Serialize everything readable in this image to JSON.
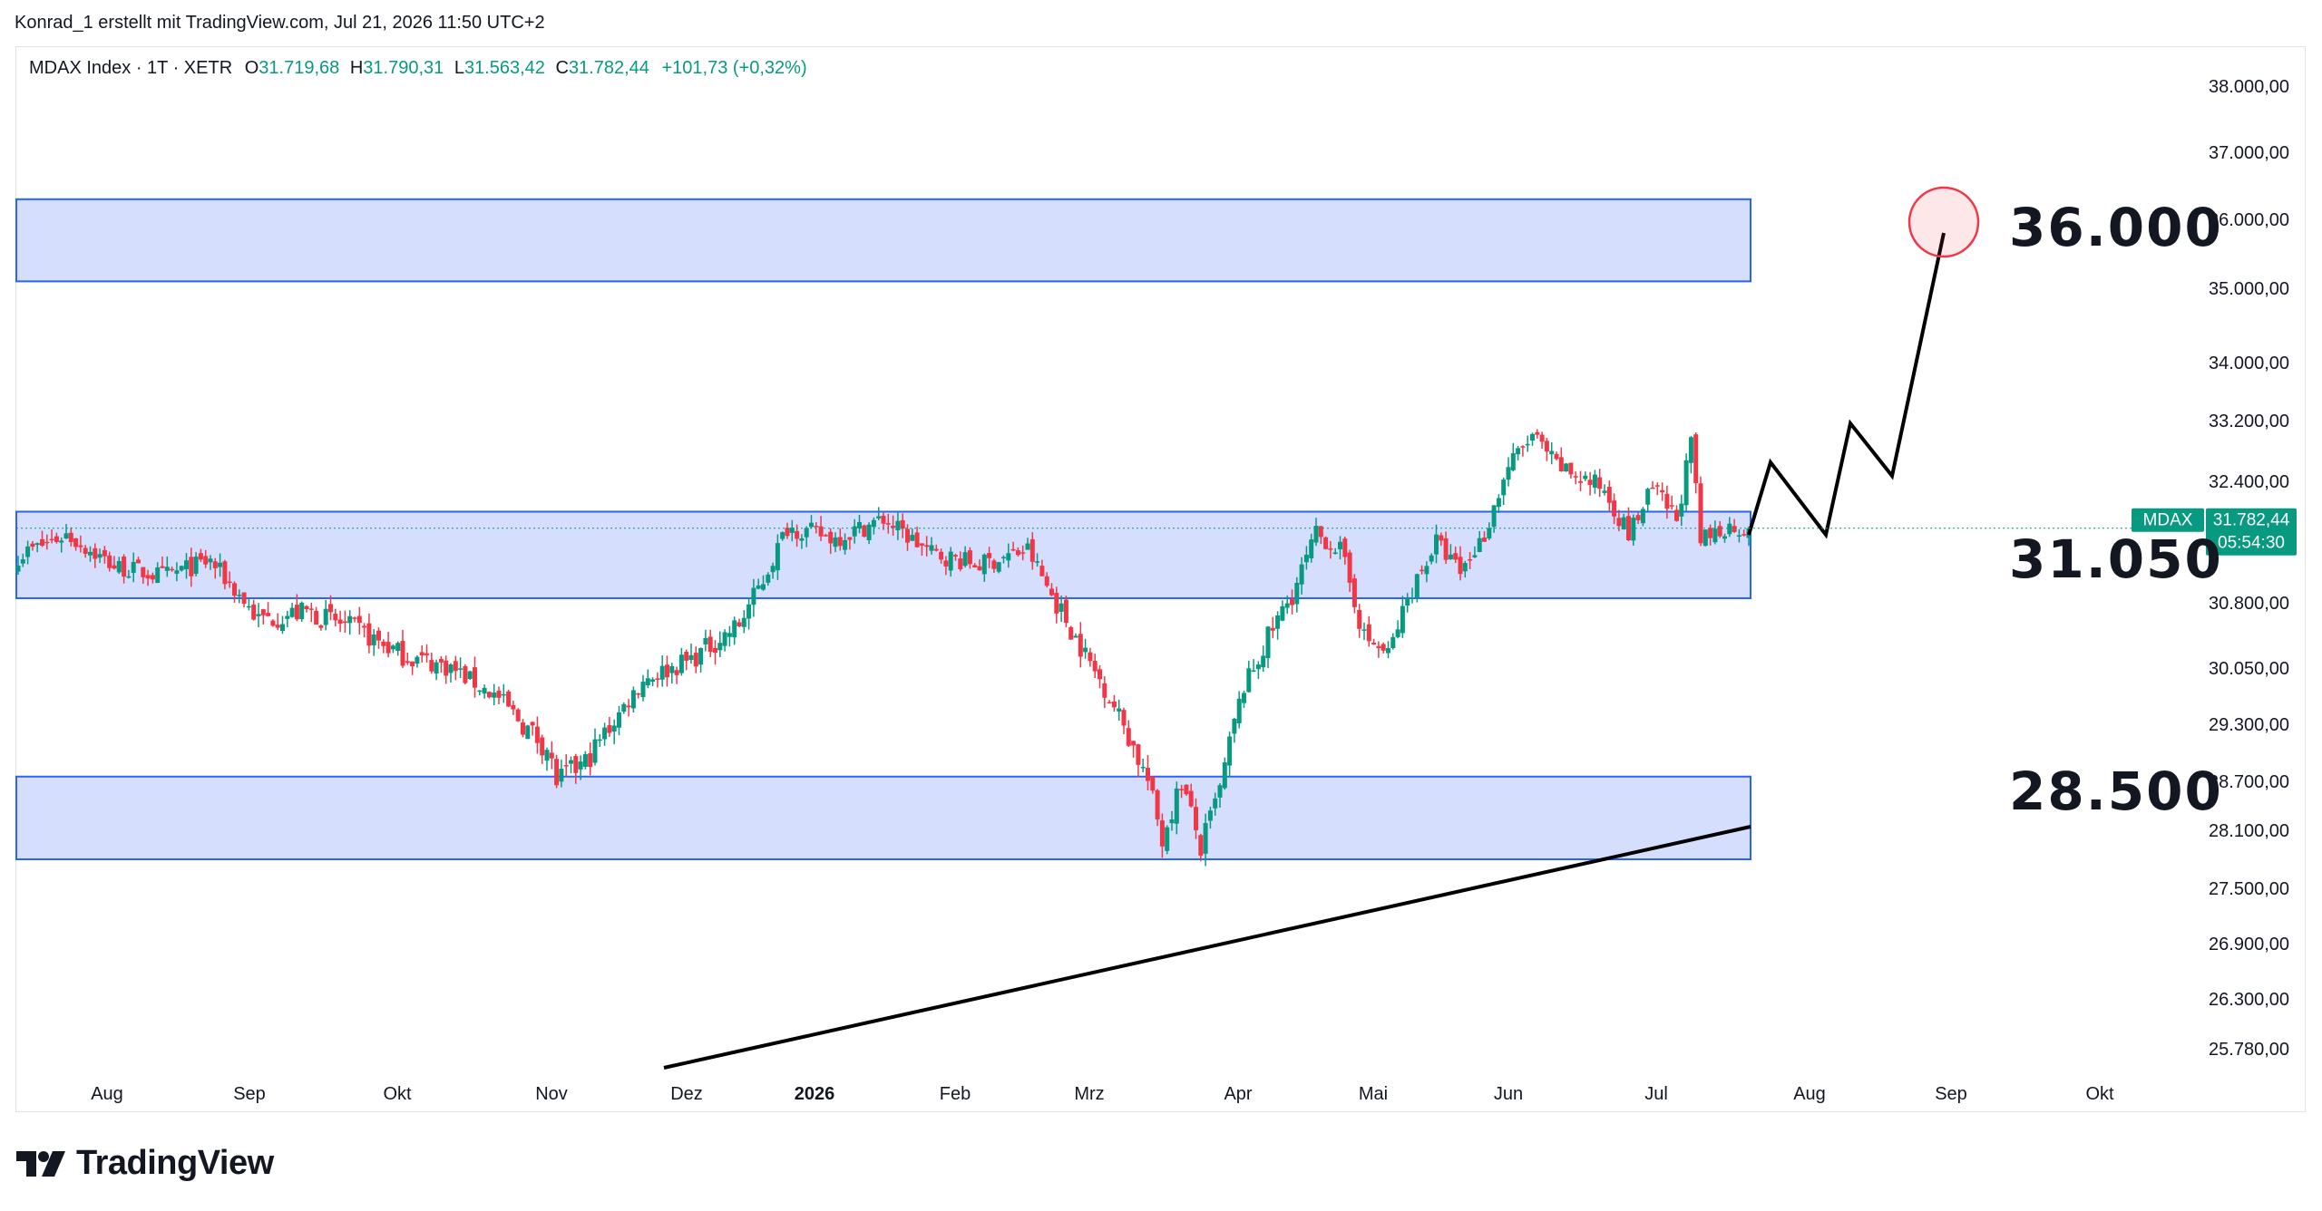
{
  "credit": "Konrad_1 erstellt mit TradingView.com, Jul 21, 2026 11:50 UTC+2",
  "legend": {
    "symbol": "MDAX Index · 1T · XETR",
    "o_label": "O",
    "o": "31.719,68",
    "h_label": "H",
    "h": "31.790,31",
    "l_label": "L",
    "l": "31.563,42",
    "c_label": "C",
    "c": "31.782,44",
    "change": "+101,73 (+0,32%)"
  },
  "logo_text": "TradingView",
  "colors": {
    "up": "#089981",
    "down": "#f23645",
    "zone_fill": "#d6defd",
    "zone_border": "#2962ff",
    "text": "#131722",
    "axis_text": "#131722",
    "price_tag": "#089981",
    "target_circle": "#f23645"
  },
  "chart_data": {
    "type": "candlestick",
    "y_axis_ticks": [
      "38.000,00",
      "37.000,00",
      "36.000,00",
      "35.000,00",
      "34.000,00",
      "33.200,00",
      "32.400,00",
      "30.800,00",
      "30.050,00",
      "29.300,00",
      "28.700,00",
      "28.100,00",
      "27.500,00",
      "26.900,00",
      "26.300,00",
      "25.780,00"
    ],
    "x_axis_ticks": [
      "Aug",
      "Sep",
      "Okt",
      "Nov",
      "Dez",
      "2026",
      "Feb",
      "Mrz",
      "Apr",
      "Mai",
      "Jun",
      "Jul",
      "Aug",
      "Sep",
      "Okt"
    ],
    "scale": "log",
    "annotations": [
      "36.000",
      "31.050",
      "28.500"
    ],
    "zones": [
      {
        "top": 36300,
        "bottom": 35100
      },
      {
        "top": 32000,
        "bottom": 30860
      },
      {
        "top": 28750,
        "bottom": 27800
      }
    ],
    "price_label": {
      "symbol": "MDAX",
      "price": "31.782,44",
      "countdown": "05:54:30"
    },
    "target_value": 36000,
    "last_close": 31782.44
  }
}
